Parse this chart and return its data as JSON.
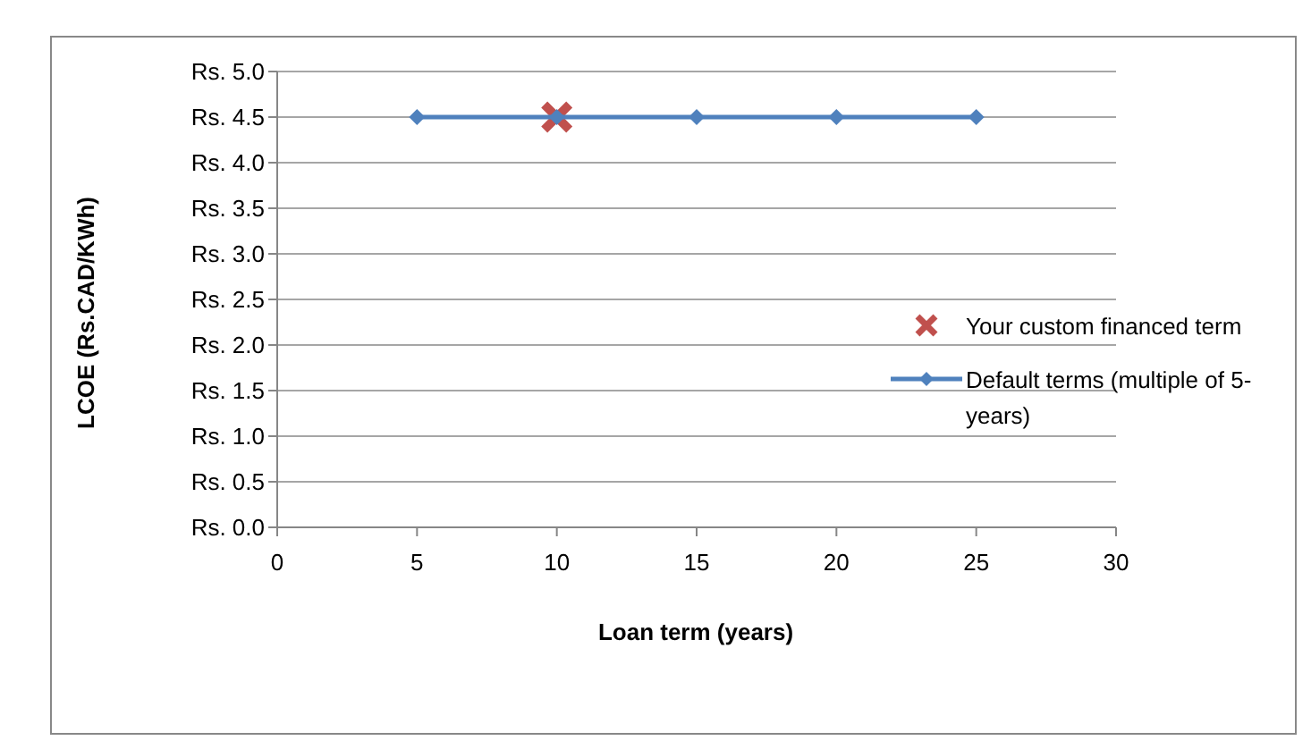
{
  "chart_data": {
    "type": "line",
    "xlabel": "Loan term (years)",
    "ylabel": "LCOE (Rs.CAD/KWh)",
    "xlim": [
      0,
      30
    ],
    "xticks": [
      0,
      5,
      10,
      15,
      20,
      25,
      30
    ],
    "ylim": [
      0,
      5
    ],
    "yticks": [
      {
        "value": 0,
        "label": "Rs. 0.0"
      },
      {
        "value": 0.5,
        "label": "Rs. 0.5"
      },
      {
        "value": 1,
        "label": "Rs. 1.0"
      },
      {
        "value": 1.5,
        "label": "Rs. 1.5"
      },
      {
        "value": 2,
        "label": "Rs. 2.0"
      },
      {
        "value": 2.5,
        "label": "Rs. 2.5"
      },
      {
        "value": 3,
        "label": "Rs. 3.0"
      },
      {
        "value": 3.5,
        "label": "Rs. 3.5"
      },
      {
        "value": 4,
        "label": "Rs. 4.0"
      },
      {
        "value": 4.5,
        "label": "Rs. 4.5"
      },
      {
        "value": 5,
        "label": "Rs. 5.0"
      }
    ],
    "grid": "y",
    "legend": "right",
    "series": [
      {
        "name": "Your custom financed term",
        "type": "scatter",
        "marker": "cross",
        "color": "#c0504d",
        "x": [
          10
        ],
        "values": [
          4.5
        ]
      },
      {
        "name": "Default terms (multiple of 5-years)",
        "marker": "diamond",
        "color": "#4f81bd",
        "x": [
          5,
          10,
          15,
          20,
          25
        ],
        "values": [
          4.5,
          4.5,
          4.5,
          4.5,
          4.5
        ]
      }
    ]
  }
}
